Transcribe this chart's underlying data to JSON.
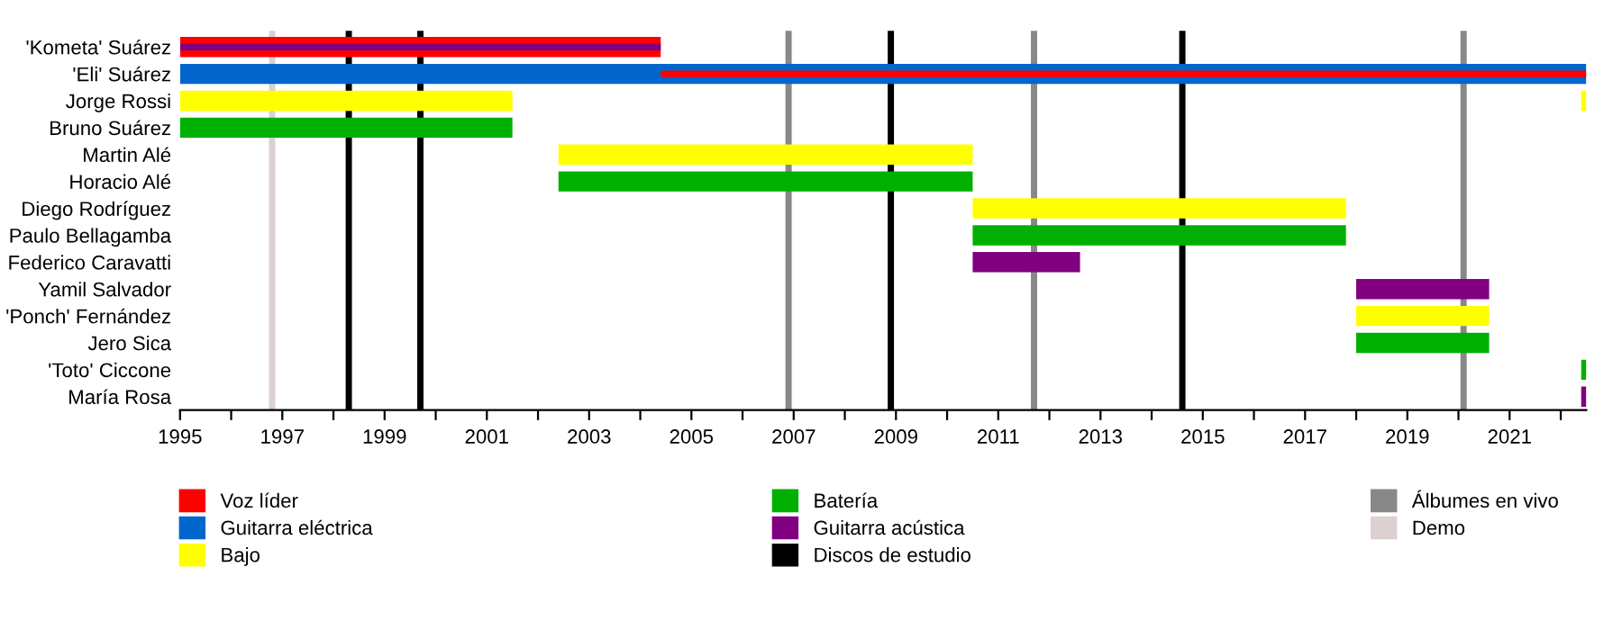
{
  "chart_data": {
    "type": "bar",
    "orientation": "horizontal",
    "categories": [
      "'Kometa' Suárez",
      "'Eli' Suárez",
      "Jorge Rossi",
      "Bruno Suárez",
      "Martin Alé",
      "Horacio Alé",
      "Diego Rodríguez",
      "Paulo Bellagamba",
      "Federico Caravatti",
      "Yamil Salvador",
      "'Ponch' Fernández",
      "Jero Sica",
      "'Toto' Ciccone",
      "María Rosa"
    ],
    "series": [
      {
        "name": "Voz líder",
        "color": "#ff0000",
        "base": [
          1995,
          2004.4,
          null,
          null,
          null,
          null,
          null,
          null,
          null,
          null,
          null,
          null,
          null,
          null
        ],
        "values": [
          9.4,
          18.1,
          null,
          null,
          null,
          null,
          null,
          null,
          null,
          null,
          null,
          null,
          null,
          null
        ]
      },
      {
        "name": "Guitarra eléctrica",
        "color": "#0066cc",
        "base": [
          null,
          1995,
          null,
          null,
          null,
          null,
          null,
          null,
          null,
          null,
          null,
          null,
          null,
          null
        ],
        "values": [
          null,
          27.5,
          null,
          null,
          null,
          null,
          null,
          null,
          null,
          null,
          null,
          null,
          null,
          null
        ]
      },
      {
        "name": "Bajo",
        "color": "#ffff00",
        "base": [
          null,
          null,
          1995,
          null,
          2002.4,
          null,
          2010.5,
          null,
          null,
          null,
          2018,
          null,
          null,
          null
        ],
        "values": [
          null,
          null,
          6.5,
          null,
          8.1,
          null,
          7.3,
          null,
          null,
          null,
          2.6,
          null,
          null,
          null
        ]
      },
      {
        "name": "Batería",
        "color": "#00b000",
        "base": [
          null,
          null,
          null,
          1995,
          null,
          2002.4,
          null,
          2010.5,
          null,
          null,
          null,
          2018,
          2022.4,
          null
        ],
        "values": [
          null,
          null,
          null,
          6.5,
          null,
          8.1,
          null,
          7.3,
          null,
          null,
          null,
          2.6,
          0.1,
          null
        ]
      },
      {
        "name": "Guitarra acústica",
        "color": "#800080",
        "base": [
          1995,
          null,
          null,
          null,
          null,
          null,
          null,
          null,
          2010.5,
          2018,
          null,
          null,
          null,
          2022.4
        ],
        "values": [
          9.4,
          null,
          null,
          null,
          null,
          null,
          null,
          null,
          2.1,
          2.6,
          null,
          null,
          null,
          0.1
        ]
      },
      {
        "color": "#ffff00",
        "base": [
          null,
          null,
          2022.4,
          null,
          null,
          null,
          null,
          null,
          null,
          null,
          null,
          null,
          null,
          null
        ],
        "values": [
          null,
          null,
          0.1,
          null,
          null,
          null,
          null,
          null,
          null,
          null,
          null,
          null,
          null,
          null
        ]
      }
    ],
    "ref_lines": [
      {
        "axis": "x",
        "value": 1998.3,
        "label": "Discos de estudio",
        "color": "#000000"
      },
      {
        "axis": "x",
        "value": 1999.7,
        "color": "#000000"
      },
      {
        "axis": "x",
        "value": 2008.9,
        "color": "#000000"
      },
      {
        "axis": "x",
        "value": 2014.6,
        "color": "#000000"
      },
      {
        "axis": "x",
        "value": 2006.9,
        "label": "Álbumes en vivo",
        "color": "#888888"
      },
      {
        "axis": "x",
        "value": 2011.7,
        "color": "#888888"
      },
      {
        "axis": "x",
        "value": 2020.1,
        "color": "#888888"
      },
      {
        "axis": "x",
        "value": 1996.8,
        "label": "Demo",
        "color": "#dcd0d0"
      }
    ],
    "xlim": [
      1995,
      2022.5
    ],
    "xticks": [
      1995,
      {
        "value": 1996,
        "label": null
      },
      1997,
      {
        "value": 1998,
        "label": null
      },
      1999,
      {
        "value": 2000,
        "label": null
      },
      2001,
      {
        "value": 2002,
        "label": null
      },
      2003,
      {
        "value": 2004,
        "label": null
      },
      2005,
      {
        "value": 2006,
        "label": null
      },
      2007,
      {
        "value": 2008,
        "label": null
      },
      2009,
      {
        "value": 2010,
        "label": null
      },
      2011,
      {
        "value": 2012,
        "label": null
      },
      2013,
      {
        "value": 2014,
        "label": null
      },
      2015,
      {
        "value": 2016,
        "label": null
      },
      2017,
      {
        "value": 2018,
        "label": null
      },
      2019,
      {
        "value": 2020,
        "label": null
      },
      2021,
      {
        "value": 2022,
        "label": null
      }
    ],
    "grid": false,
    "legend": "bottom"
  }
}
